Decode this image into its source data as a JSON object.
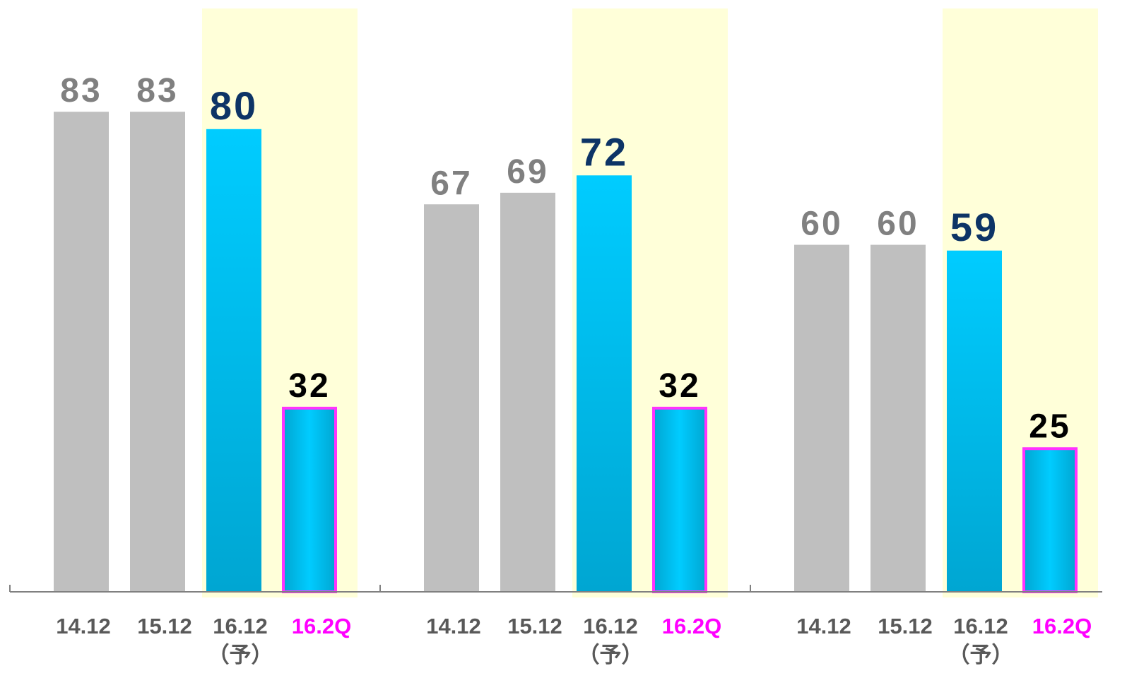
{
  "colors": {
    "past_bar": "#bfbfbf",
    "past_label": "#808080",
    "forecast_label": "#0d3466",
    "actual_label": "#000000",
    "bar_cyan_light": "#00ccff",
    "bar_cyan_dark": "#00a6d2",
    "quarter_border": "#ff33ff",
    "highlight_band": "#ffffd9",
    "category_text": "#595959",
    "quarter_text": "#ff00ff",
    "axis": "#808080"
  },
  "chart_data": [
    {
      "type": "bar",
      "categories": [
        "14.12",
        "15.12",
        "16.12",
        "16.2Q"
      ],
      "category_sublabels": [
        "",
        "",
        "（予）",
        ""
      ],
      "values": [
        83,
        83,
        80,
        32
      ],
      "ylim": [
        0,
        100
      ],
      "highlighted_categories": [
        "16.12",
        "16.2Q"
      ]
    },
    {
      "type": "bar",
      "categories": [
        "14.12",
        "15.12",
        "16.12",
        "16.2Q"
      ],
      "category_sublabels": [
        "",
        "",
        "（予）",
        ""
      ],
      "values": [
        67,
        69,
        72,
        32
      ],
      "ylim": [
        0,
        100
      ],
      "highlighted_categories": [
        "16.12",
        "16.2Q"
      ]
    },
    {
      "type": "bar",
      "categories": [
        "14.12",
        "15.12",
        "16.12",
        "16.2Q"
      ],
      "category_sublabels": [
        "",
        "",
        "（予）",
        ""
      ],
      "values": [
        60,
        60,
        59,
        25
      ],
      "ylim": [
        0,
        100
      ],
      "highlighted_categories": [
        "16.12",
        "16.2Q"
      ]
    }
  ]
}
